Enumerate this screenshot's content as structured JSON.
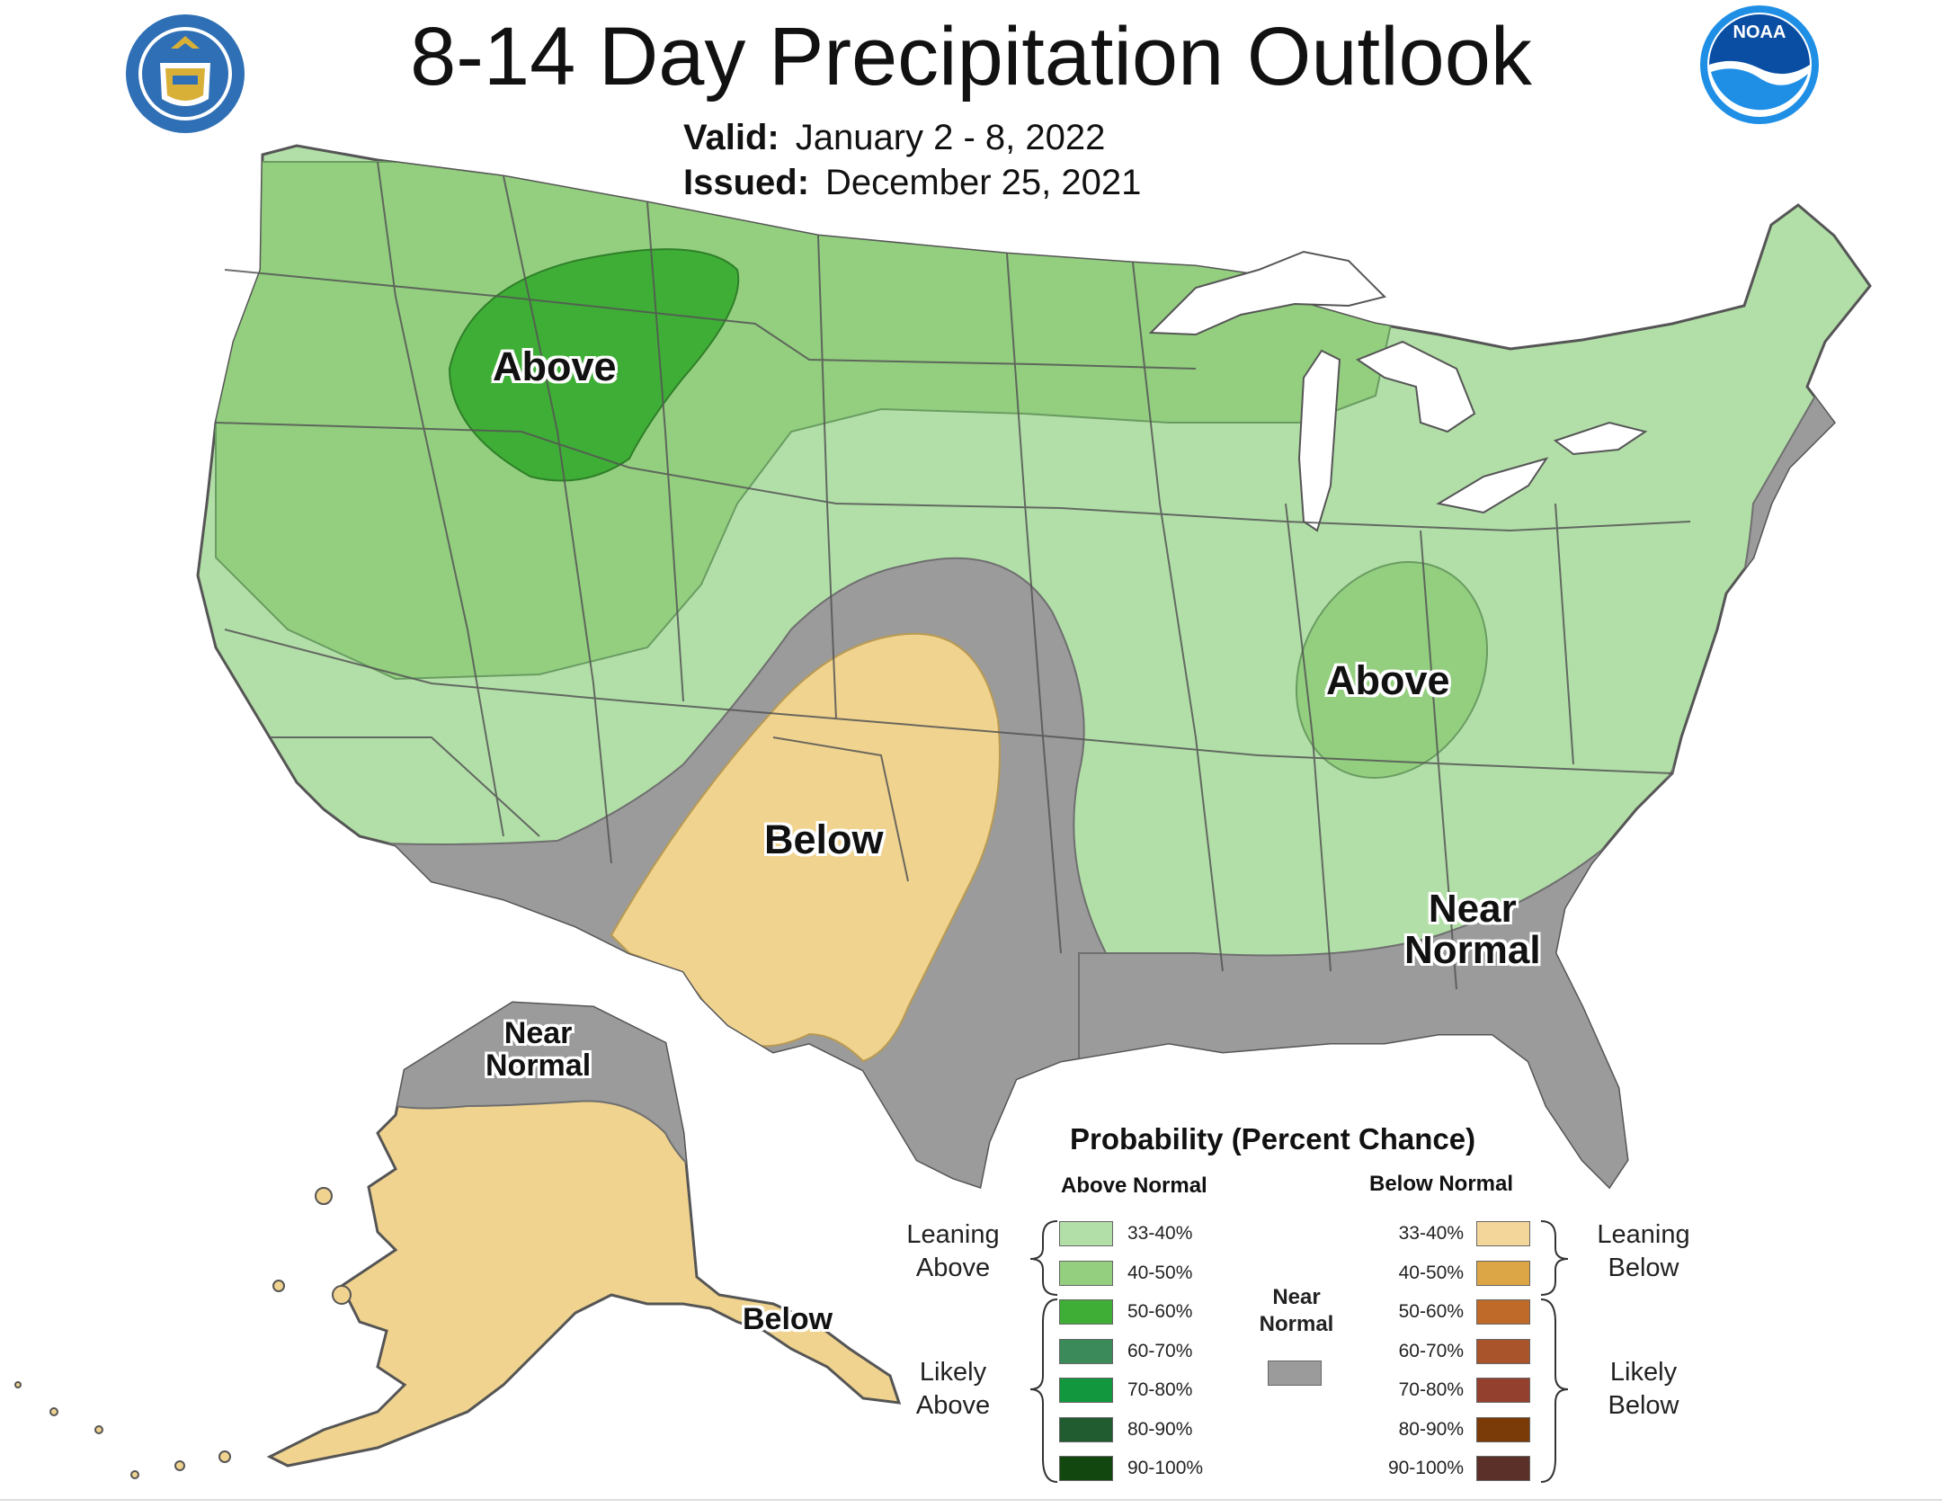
{
  "title": "8-14 Day Precipitation Outlook",
  "valid": {
    "label": "Valid:",
    "value": "January 2 - 8, 2022"
  },
  "issued": {
    "label": "Issued:",
    "value": "December 25, 2021"
  },
  "logos": {
    "left": "commerce-seal-icon",
    "right": "noaa-logo-icon",
    "noaa_text": "NOAA"
  },
  "colors": {
    "lean_above": "#b2dfa8",
    "above_40_50": "#93cf7f",
    "above_50_60": "#3fae36",
    "near_normal": "#9b9b9b",
    "lean_below": "#f0d38f",
    "lakes": "#ffffff",
    "border": "#555555"
  },
  "map_labels": {
    "above_west": "Above",
    "above_east": "Above",
    "below_plains": "Below",
    "near_normal_se_line1": "Near",
    "near_normal_se_line2": "Normal",
    "ak_near_line1": "Near",
    "ak_near_line2": "Normal",
    "ak_below": "Below"
  },
  "legend": {
    "title": "Probability (Percent Chance)",
    "above_header": "Above Normal",
    "below_header": "Below Normal",
    "leaning_above": [
      "Leaning",
      "Above"
    ],
    "likely_above": [
      "Likely",
      "Above"
    ],
    "leaning_below": [
      "Leaning",
      "Below"
    ],
    "likely_below": [
      "Likely",
      "Below"
    ],
    "near_normal": [
      "Near",
      "Normal"
    ],
    "near_color": "#9b9b9b",
    "above": [
      {
        "label": "33-40%",
        "color": "#b2dfa8"
      },
      {
        "label": "40-50%",
        "color": "#93cf7f"
      },
      {
        "label": "50-60%",
        "color": "#3fae36"
      },
      {
        "label": "60-70%",
        "color": "#3a8a5a"
      },
      {
        "label": "70-80%",
        "color": "#12973e"
      },
      {
        "label": "80-90%",
        "color": "#215c30"
      },
      {
        "label": "90-100%",
        "color": "#12480f"
      }
    ],
    "below": [
      {
        "label": "33-40%",
        "color": "#f3d79a"
      },
      {
        "label": "40-50%",
        "color": "#dca646"
      },
      {
        "label": "50-60%",
        "color": "#c06a2a"
      },
      {
        "label": "60-70%",
        "color": "#a9542a"
      },
      {
        "label": "70-80%",
        "color": "#94402e"
      },
      {
        "label": "80-90%",
        "color": "#7a3b08"
      },
      {
        "label": "90-100%",
        "color": "#5a3028"
      }
    ]
  }
}
